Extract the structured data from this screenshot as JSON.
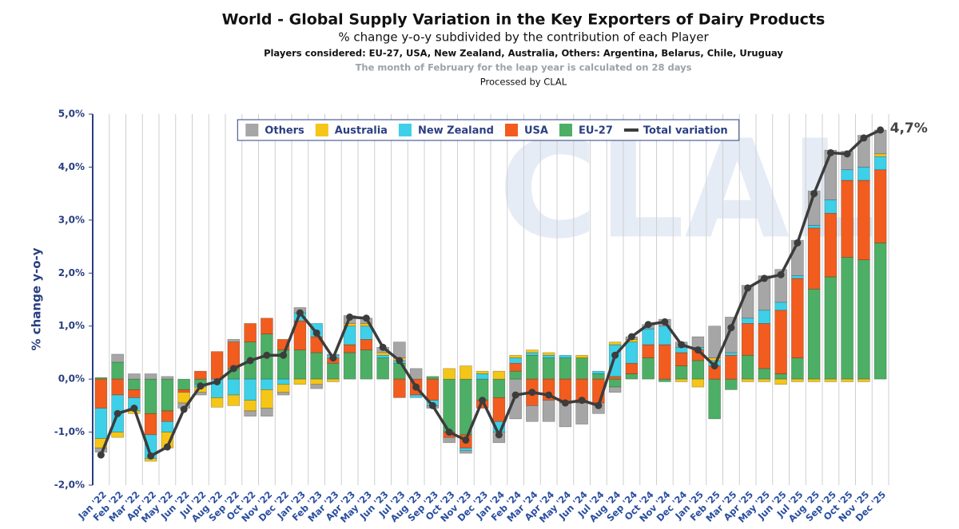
{
  "chart_data": {
    "type": "stacked-bar-line",
    "title": "World - Global Supply Variation in the Key Exporters of Dairy Products",
    "subtitle": "% change y-o-y subdivided by the contribution of each Player",
    "players_note": "Players considered: EU-27, USA, New Zealand, Australia, Others: Argentina, Belarus, Chile, Uruguay",
    "leap_note": "The month of February for the leap year is calculated on 28 days",
    "source": "Processed by CLAL",
    "watermark": "CLAL",
    "y_label": "% change y-o-y",
    "categories": [
      "Jan '22",
      "Feb '22",
      "Mar '22",
      "Apr '22",
      "May '22",
      "Jun '22",
      "Jul '22",
      "Aug '22",
      "Sep '22",
      "Oct '22",
      "Nov '22",
      "Dec '22",
      "Jan '23",
      "Feb '23",
      "Mar '23",
      "Apr '23",
      "May '23",
      "Jun '23",
      "Jul '23",
      "Aug '23",
      "Sep '23",
      "Oct '23",
      "Nov '23",
      "Dec '23",
      "Jan '24",
      "Feb '24",
      "Mar '24",
      "Apr '24",
      "May '24",
      "Jun '24",
      "Jul '24",
      "Aug '24",
      "Sep '24",
      "Oct '24",
      "Nov '24",
      "Dec '24",
      "Jan '25",
      "Feb '25",
      "Mar '25",
      "Apr '25",
      "May '25",
      "Jun '25",
      "Jul '25",
      "Aug '25",
      "Sep '25",
      "Oct '25",
      "Nov '25",
      "Dec '25"
    ],
    "series": [
      {
        "name": "EU-27",
        "color": "#4caf65",
        "values": [
          0.03,
          0.32,
          -0.2,
          -0.65,
          -0.6,
          -0.2,
          -0.1,
          0,
          0.2,
          0.7,
          0.85,
          0.55,
          0.55,
          0.5,
          0.3,
          0.5,
          0.55,
          0.4,
          0.3,
          0,
          0.05,
          -1.0,
          -1.05,
          -0.4,
          -0.35,
          0.15,
          0.45,
          0.4,
          0.4,
          0.4,
          0.1,
          -0.15,
          0.1,
          0.4,
          -0.05,
          0.25,
          0.35,
          -0.75,
          -0.2,
          0.45,
          0.2,
          0.1,
          0.4,
          1.7,
          1.93,
          2.3,
          2.25,
          2.57
        ]
      },
      {
        "name": "USA",
        "color": "#f25c1e",
        "values": [
          -0.55,
          -0.3,
          -0.15,
          -0.4,
          -0.2,
          -0.05,
          0.15,
          0.52,
          0.5,
          0.35,
          0.3,
          0.2,
          0.55,
          0.3,
          0.1,
          0.15,
          0.2,
          0,
          -0.35,
          -0.3,
          -0.4,
          -0.1,
          -0.25,
          -0.15,
          -0.45,
          0.15,
          -0.5,
          -0.4,
          -0.45,
          -0.45,
          -0.45,
          0.05,
          0.2,
          0.25,
          0.65,
          0.25,
          0.2,
          0.25,
          0.45,
          0.6,
          0.85,
          1.2,
          1.5,
          1.15,
          1.2,
          1.45,
          1.5,
          1.38
        ]
      },
      {
        "name": "New Zealand",
        "color": "#3dd0e8",
        "values": [
          -0.57,
          -0.7,
          -0.25,
          -0.45,
          -0.2,
          0,
          -0.05,
          -0.35,
          -0.3,
          -0.4,
          -0.2,
          -0.1,
          0.15,
          0.25,
          0.05,
          0.35,
          0.25,
          0.05,
          0.05,
          -0.05,
          -0.1,
          0,
          -0.05,
          0.1,
          -0.2,
          0.1,
          0.05,
          0.05,
          0.05,
          0,
          0.05,
          0.6,
          0.4,
          0.3,
          0.35,
          0.1,
          0.05,
          0.1,
          0.05,
          0.1,
          0.25,
          0.15,
          0.05,
          0.05,
          0.25,
          0.2,
          0.25,
          0.25
        ]
      },
      {
        "name": "Australia",
        "color": "#f5c518",
        "values": [
          -0.18,
          -0.1,
          -0.05,
          -0.05,
          -0.3,
          -0.2,
          -0.1,
          -0.18,
          -0.2,
          -0.2,
          -0.35,
          -0.15,
          -0.1,
          -0.1,
          -0.05,
          0.05,
          0.05,
          0.05,
          0.05,
          0,
          0,
          0.2,
          0.25,
          0.05,
          0.15,
          0.05,
          0.05,
          0.05,
          0,
          0.05,
          0,
          0.05,
          0.05,
          0,
          0,
          -0.05,
          -0.15,
          0.05,
          0,
          -0.05,
          -0.05,
          -0.1,
          -0.05,
          -0.05,
          -0.05,
          -0.05,
          -0.05,
          0.05
        ]
      },
      {
        "name": "Others",
        "color": "#a6a6a6",
        "values": [
          -0.08,
          0.15,
          0.1,
          0.1,
          0.05,
          -0.1,
          -0.05,
          0,
          0.05,
          -0.1,
          -0.15,
          -0.05,
          0.1,
          -0.08,
          0.02,
          0.15,
          0.1,
          0.1,
          0.3,
          0.2,
          -0.05,
          -0.1,
          -0.05,
          0,
          -0.2,
          -0.75,
          -0.3,
          -0.4,
          -0.45,
          -0.4,
          -0.2,
          -0.1,
          0.05,
          0.08,
          0.13,
          0.1,
          0.2,
          0.6,
          0.67,
          0.62,
          0.65,
          0.62,
          0.67,
          0.65,
          0.94,
          0.35,
          0.6,
          0.45
        ]
      },
      {
        "name": "Total variation",
        "color": "#3c3c3c",
        "kind": "line",
        "values": [
          -1.43,
          -0.65,
          -0.55,
          -1.45,
          -1.28,
          -0.57,
          -0.13,
          -0.05,
          0.2,
          0.35,
          0.45,
          0.45,
          1.25,
          0.87,
          0.4,
          1.17,
          1.15,
          0.6,
          0.35,
          -0.15,
          -0.5,
          -1.0,
          -1.15,
          -0.4,
          -1.05,
          -0.3,
          -0.25,
          -0.3,
          -0.45,
          -0.4,
          -0.5,
          0.45,
          0.8,
          1.03,
          1.08,
          0.65,
          0.55,
          0.25,
          0.97,
          1.72,
          1.9,
          1.97,
          2.57,
          3.5,
          4.27,
          4.25,
          4.55,
          4.7
        ],
        "value_labels": [
          null,
          null,
          null,
          null,
          null,
          null,
          null,
          null,
          null,
          null,
          null,
          null,
          null,
          null,
          null,
          null,
          null,
          null,
          null,
          null,
          null,
          null,
          null,
          null,
          null,
          null,
          null,
          null,
          null,
          null,
          null,
          null,
          null,
          null,
          null,
          null,
          null,
          null,
          null,
          null,
          null,
          null,
          null,
          null,
          null,
          null,
          null,
          "4,7%"
        ]
      }
    ],
    "ylim": [
      -2,
      5
    ],
    "yticks": [
      {
        "value": -2,
        "label": "-2,0%"
      },
      {
        "value": -1,
        "label": "-1,0%"
      },
      {
        "value": 0,
        "label": "0,0%"
      },
      {
        "value": 1,
        "label": "1,0%"
      },
      {
        "value": 2,
        "label": "2,0%"
      },
      {
        "value": 3,
        "label": "3,0%"
      },
      {
        "value": 4,
        "label": "4,0%"
      },
      {
        "value": 5,
        "label": "5,0%"
      }
    ],
    "grid": true,
    "legend": "top"
  }
}
